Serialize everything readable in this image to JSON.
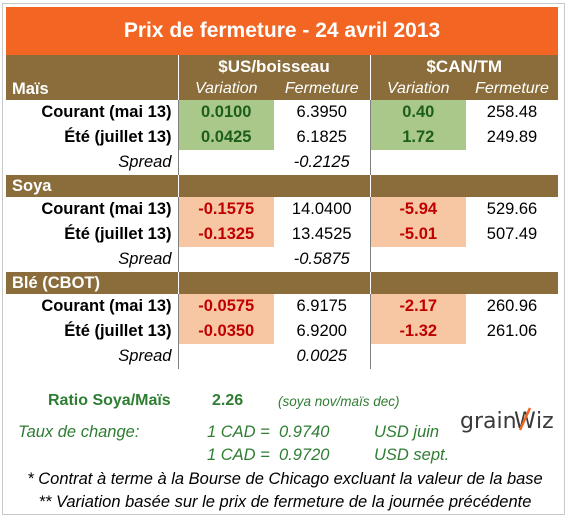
{
  "title": "Prix de fermeture - 24 avril 2013",
  "units": {
    "usd": "$US/boisseau",
    "cad": "$CAN/TM"
  },
  "colheads": {
    "variation": "Variation",
    "fermeture": "Fermeture"
  },
  "sections": [
    {
      "name": "Maïs",
      "rows": [
        {
          "label": "Courant (mai 13)",
          "us_var": "0.0100",
          "us_close": "6.3950",
          "cad_var": "0.40",
          "cad_close": "258.48"
        },
        {
          "label": "Été (juillet 13)",
          "us_var": "0.0425",
          "us_close": "6.1825",
          "cad_var": "1.72",
          "cad_close": "249.89"
        }
      ],
      "spread_label": "Spread",
      "spread": "-0.2125"
    },
    {
      "name": "Soya",
      "rows": [
        {
          "label": "Courant (mai 13)",
          "us_var": "-0.1575",
          "us_close": "14.0400",
          "cad_var": "-5.94",
          "cad_close": "529.66"
        },
        {
          "label": "Été (juillet 13)",
          "us_var": "-0.1325",
          "us_close": "13.4525",
          "cad_var": "-5.01",
          "cad_close": "507.49"
        }
      ],
      "spread_label": "Spread",
      "spread": "-0.5875"
    },
    {
      "name": "Blé (CBOT)",
      "rows": [
        {
          "label": "Courant (mai 13)",
          "us_var": "-0.0575",
          "us_close": "6.9175",
          "cad_var": "-2.17",
          "cad_close": "260.96"
        },
        {
          "label": "Été (juillet 13)",
          "us_var": "-0.0350",
          "us_close": "6.9200",
          "cad_var": "-1.32",
          "cad_close": "261.06"
        }
      ],
      "spread_label": "Spread",
      "spread": "0.0025"
    }
  ],
  "ratio": {
    "label": "Ratio Soya/Maïs",
    "value": "2.26",
    "note": "(soya nov/maïs dec)"
  },
  "exchange": {
    "label": "Taux de change:",
    "rates": [
      {
        "text": "1 CAD =  0.9740",
        "unit": "USD juin"
      },
      {
        "text": "1 CAD =  0.9720",
        "unit": "USD sept."
      }
    ]
  },
  "notes": [
    "* Contrat à terme à la Bourse de Chicago excluant la valeur de la base",
    "** Variation basée sur le prix de fermeture de la journée précédente"
  ],
  "logo": {
    "text_left": "grain",
    "text_right": "iz",
    "mark": "W"
  },
  "colors": {
    "title_bg": "#f26522",
    "band_bg": "#8a6d3b",
    "positive_bg": "#a9c88a",
    "negative_bg": "#f7c7a4",
    "negative_text": "#c00000",
    "footer_text": "#2e7d32"
  }
}
